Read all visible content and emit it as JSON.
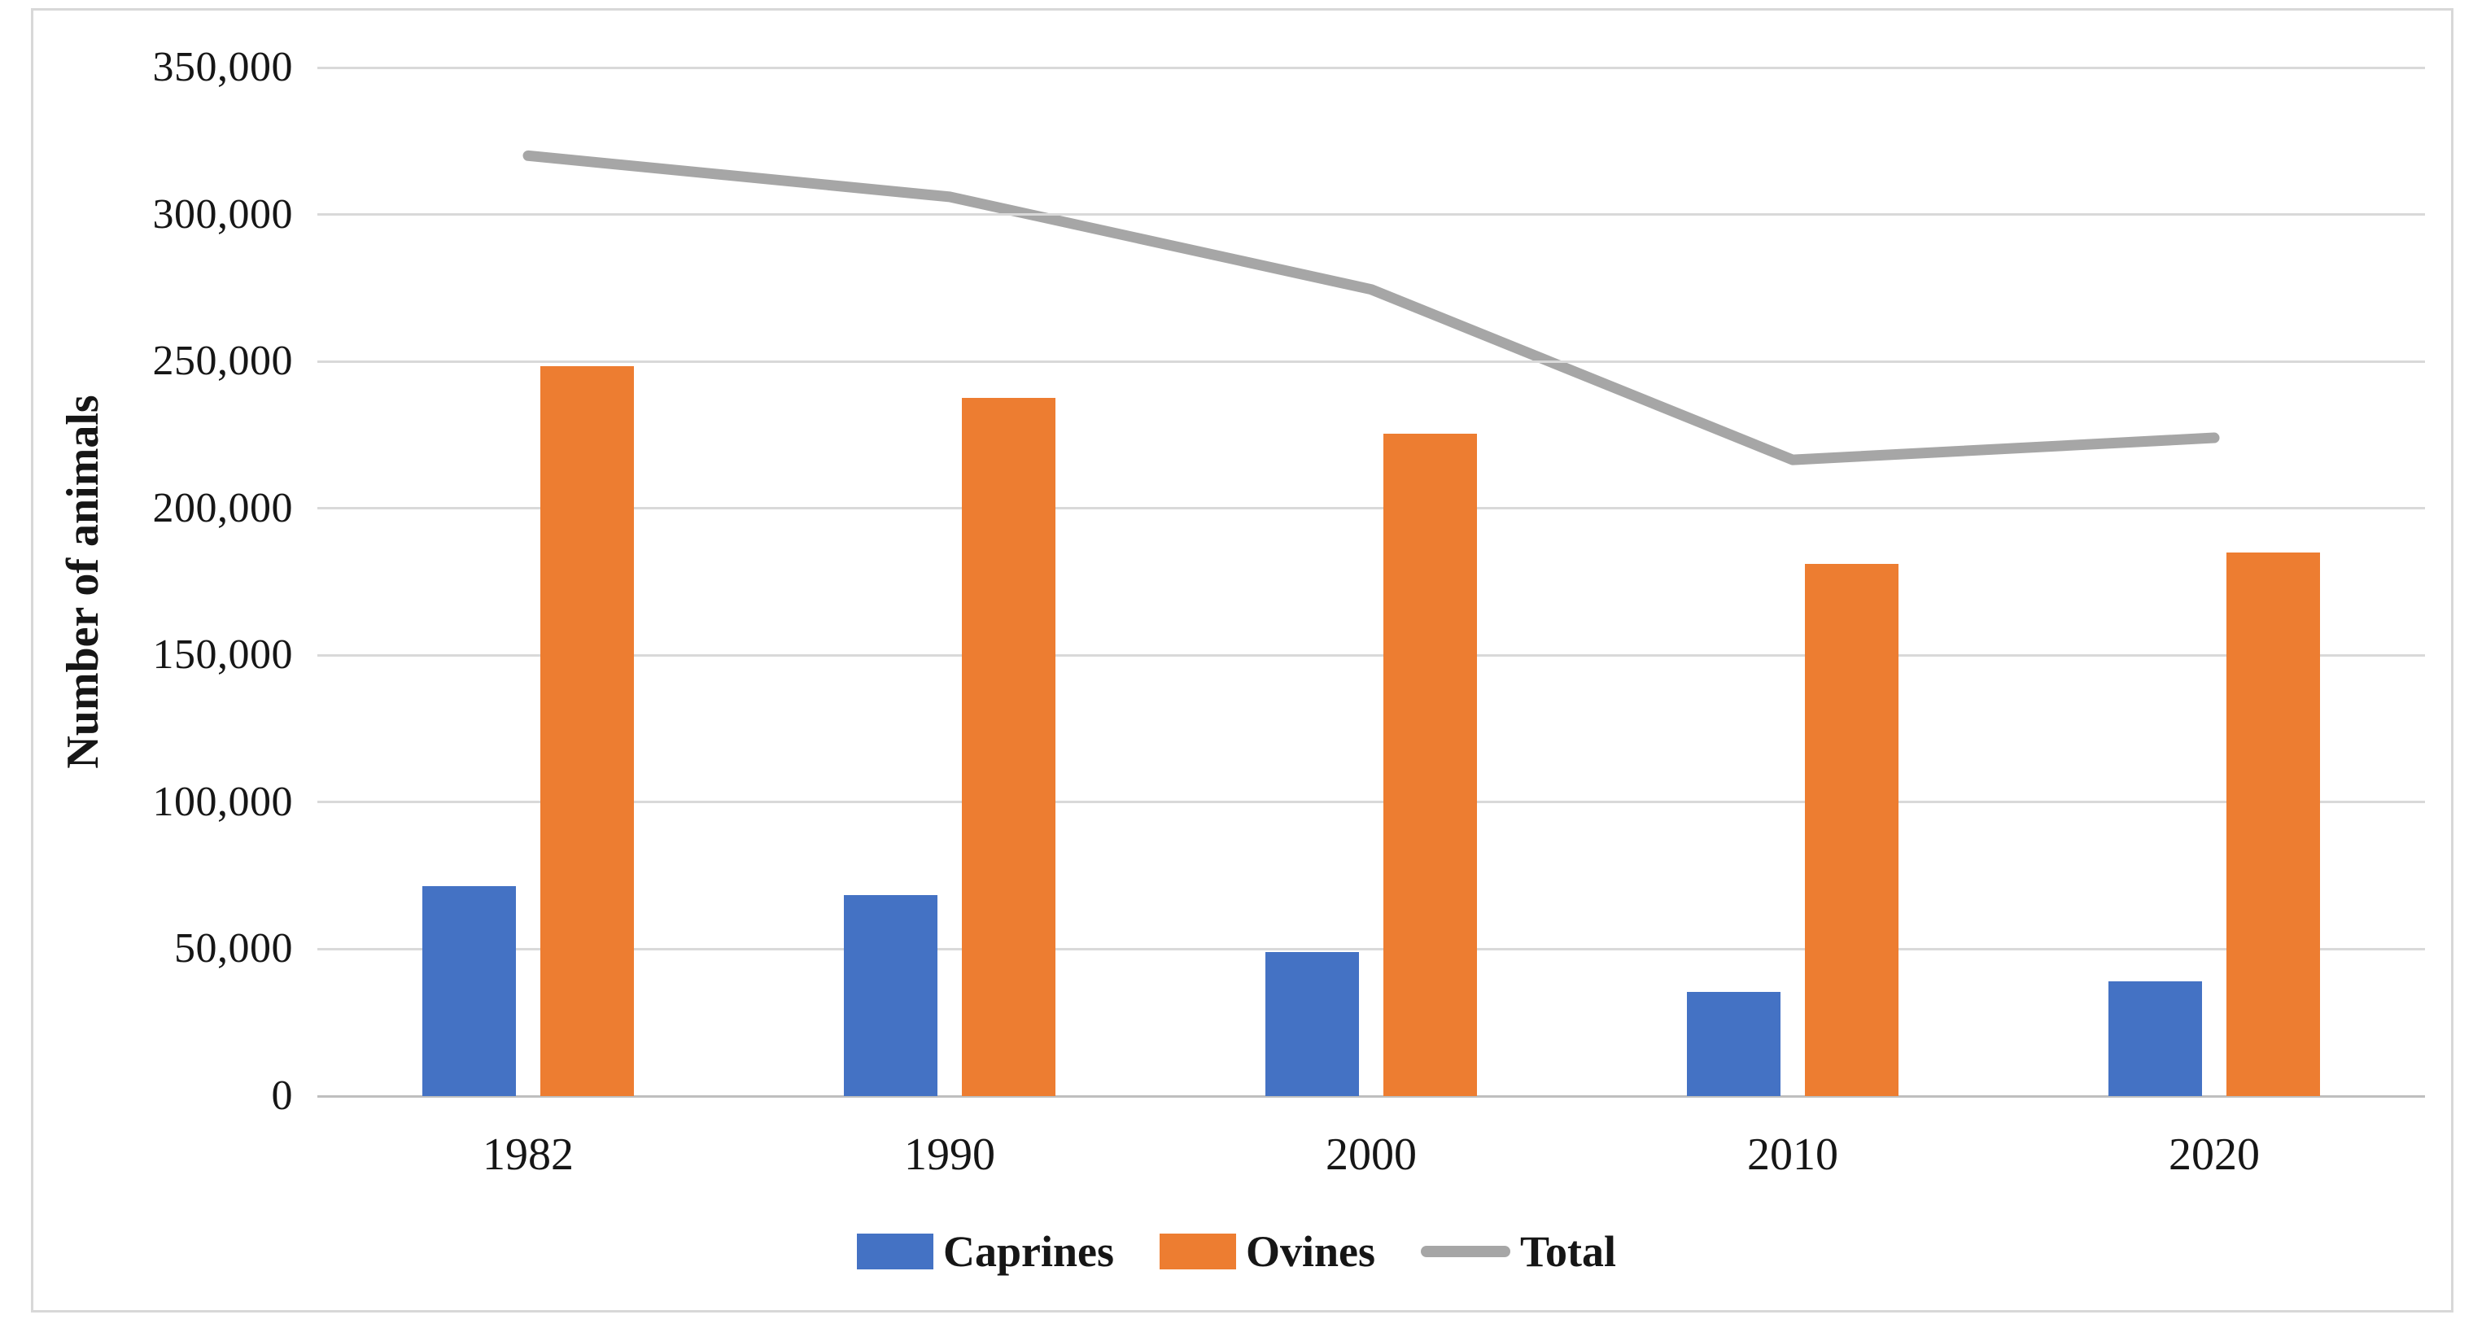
{
  "chart_data": {
    "type": "bar",
    "subtype": "grouped-bars-with-line-overlay",
    "title": "",
    "xlabel": "",
    "ylabel": "Number of animals",
    "categories": [
      "1982",
      "1990",
      "2000",
      "2010",
      "2020"
    ],
    "series": [
      {
        "name": "Caprines",
        "type": "bar",
        "color": "#4472C4",
        "values": [
          71500,
          68500,
          49000,
          35500,
          39000
        ]
      },
      {
        "name": "Ovines",
        "type": "bar",
        "color": "#ED7D31",
        "values": [
          248500,
          237500,
          225500,
          181000,
          185000
        ]
      },
      {
        "name": "Total",
        "type": "line",
        "color": "#A6A6A6",
        "values": [
          320000,
          306000,
          274500,
          216500,
          224000
        ]
      }
    ],
    "ylim": [
      0,
      350000
    ],
    "ytick_step": 50000,
    "yticks": [
      {
        "value": 0,
        "label": "0"
      },
      {
        "value": 50000,
        "label": "50,000"
      },
      {
        "value": 100000,
        "label": "100,000"
      },
      {
        "value": 150000,
        "label": "150,000"
      },
      {
        "value": 200000,
        "label": "200,000"
      },
      {
        "value": 250000,
        "label": "250,000"
      },
      {
        "value": 300000,
        "label": "300,000"
      },
      {
        "value": 350000,
        "label": "350,000"
      }
    ],
    "grid": true,
    "legend_position": "bottom"
  },
  "colors": {
    "caprines": "#4472C4",
    "ovines": "#ED7D31",
    "total_line": "#A6A6A6",
    "gridline": "#D9D9D9",
    "axis_line": "#BFBFBF",
    "frame_border": "#D8D8D8",
    "text": "#161616",
    "background": "#FFFFFF"
  }
}
